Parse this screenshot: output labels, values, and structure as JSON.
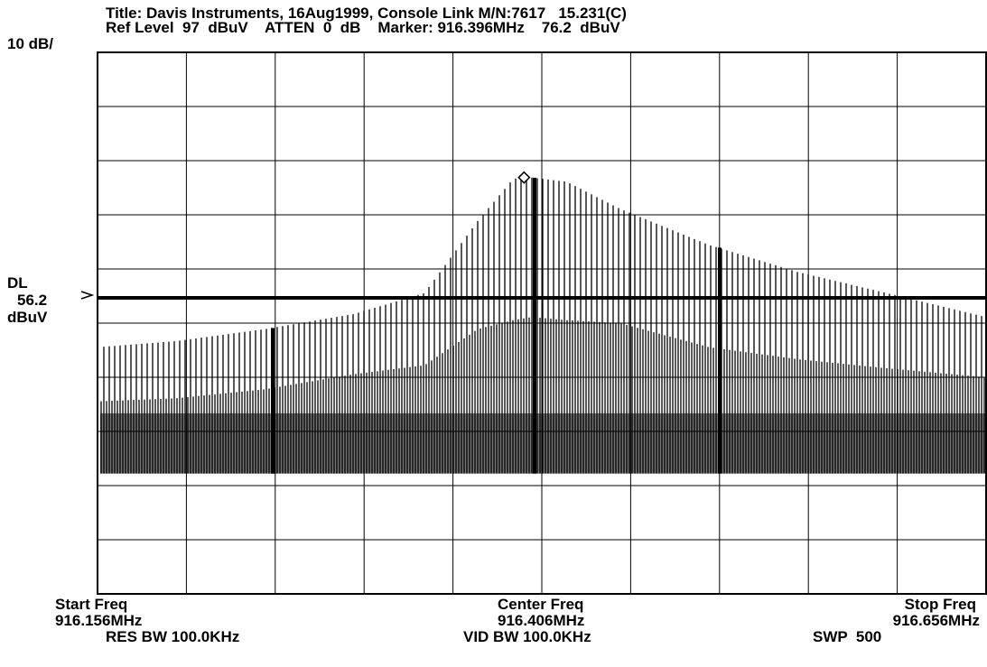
{
  "header": {
    "title_line": "Title: Davis Instruments, 16Aug1999, Console Link M/N:7617   15.231(C)",
    "ref_line": "Ref Level  97  dBuV    ATTEN  0  dB    Marker: 916.396MHz    76.2  dBuV"
  },
  "scale_label": "10 dB/",
  "display_line": {
    "label": "DL",
    "value": "56.2",
    "unit": "dBuV",
    "level_dbuv": 56.2
  },
  "footer": {
    "start_label": "Start Freq",
    "start_value": "916.156MHz",
    "center_label": "Center Freq",
    "center_value": "916.406MHz",
    "stop_label": "Stop Freq",
    "stop_value": "916.656MHz",
    "res_bw": "RES BW 100.0KHz",
    "vid_bw": "VID BW 100.0KHz",
    "swp": "SWP  500"
  },
  "colors": {
    "trace": "#000000",
    "grid": "#000000",
    "background": "#ffffff"
  },
  "chart_data": {
    "type": "line",
    "xlim": [
      916.156,
      916.656
    ],
    "ylim": [
      7,
      97
    ],
    "grid": true,
    "reference_level_dbuv": 97,
    "db_per_division": 10,
    "marker": {
      "frequency_mhz": 916.396,
      "level_dbuv": 76.2
    },
    "display_line_dbuv": 56.2,
    "series": [
      {
        "x": [
          916.156,
          916.2,
          916.25,
          916.3,
          916.34,
          916.37,
          916.39,
          916.4,
          916.42,
          916.45,
          916.5,
          916.55,
          916.6,
          916.656
        ],
        "values": [
          48,
          49,
          51,
          53.5,
          57,
          69,
          76,
          76.2,
          75.5,
          71,
          65,
          60.5,
          57,
          53
        ]
      },
      {
        "x": [
          916.156,
          916.2,
          916.25,
          916.3,
          916.34,
          916.37,
          916.39,
          916.4,
          916.42,
          916.45,
          916.5,
          916.55,
          916.6,
          916.656
        ],
        "values": [
          39,
          39.5,
          41,
          43.5,
          45,
          51,
          52.5,
          53,
          52.5,
          52,
          48,
          46,
          44.5,
          43
        ]
      },
      {
        "x": [
          916.156,
          916.656
        ],
        "values": [
          37,
          37
        ]
      },
      {
        "x": [
          916.156,
          916.656
        ],
        "values": [
          27,
          27
        ]
      }
    ]
  }
}
